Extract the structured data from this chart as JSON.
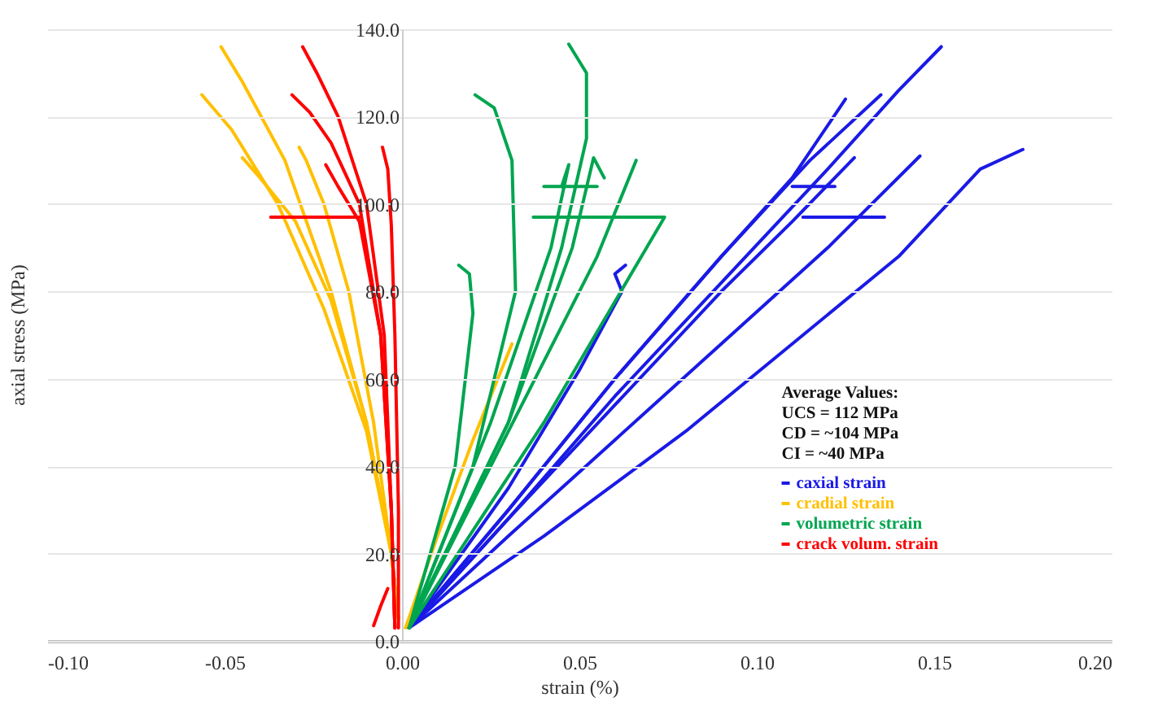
{
  "chart_data": {
    "type": "line",
    "xlabel": "strain (%)",
    "ylabel": "axial stress (MPa)",
    "xlim": [
      -0.1,
      0.2
    ],
    "ylim": [
      0,
      140
    ],
    "xticks": [
      {
        "value": -0.1,
        "label": "-0.10"
      },
      {
        "value": -0.05,
        "label": "-0.05"
      },
      {
        "value": 0,
        "label": "0.00"
      },
      {
        "value": 0.05,
        "label": "0.05"
      },
      {
        "value": 0.1,
        "label": "0.10"
      },
      {
        "value": 0.15,
        "label": "0.15"
      },
      {
        "value": 0.2,
        "label": "0.20"
      }
    ],
    "yticks": [
      {
        "value": 0,
        "label": "0.0"
      },
      {
        "value": 20,
        "label": "20.0"
      },
      {
        "value": 40,
        "label": "40.0"
      },
      {
        "value": 60,
        "label": "60.0"
      },
      {
        "value": 80,
        "label": "80.0"
      },
      {
        "value": 100,
        "label": "100.0"
      },
      {
        "value": 120,
        "label": "120.0"
      },
      {
        "value": 140,
        "label": "140.0"
      }
    ],
    "grid": "y",
    "legend": "bottom right",
    "line_style": "solid",
    "marker": "none",
    "annotations": [
      "Average Values:",
      "UCS = 112 MPa",
      "CD   = ~104 MPa",
      "CI   =  ~40 MPa"
    ],
    "series": [
      {
        "name": "caxial strain",
        "color": "#1a1ae6",
        "x": [
          0.002,
          0.03,
          0.06,
          0.09,
          0.12,
          0.14,
          0.152
        ],
        "values": [
          3,
          28,
          56,
          82,
          108,
          126,
          136
        ]
      },
      {
        "color": "#1a1ae6",
        "x": [
          0.002,
          0.03,
          0.06,
          0.09,
          0.115,
          0.135
        ],
        "values": [
          3,
          30,
          60,
          88,
          110,
          125
        ]
      },
      {
        "color": "#1a1ae6",
        "x": [
          0.002,
          0.03,
          0.06,
          0.09,
          0.11,
          0.125
        ],
        "values": [
          3,
          30,
          60,
          88,
          106,
          124
        ]
      },
      {
        "color": "#1a1ae6",
        "x": [
          0.002,
          0.03,
          0.06,
          0.09,
          0.11,
          0.1275
        ],
        "values": [
          3,
          28,
          54,
          80,
          96,
          110.6
        ]
      },
      {
        "color": "#1a1ae6",
        "x": [
          0.002,
          0.03,
          0.06,
          0.09,
          0.12,
          0.146
        ],
        "values": [
          3,
          24,
          46,
          68,
          90,
          111
        ]
      },
      {
        "color": "#1a1ae6",
        "x": [
          0.002,
          0.04,
          0.08,
          0.11,
          0.14,
          0.163,
          0.175
        ],
        "values": [
          3,
          24,
          48,
          68,
          88,
          108,
          112.5
        ]
      },
      {
        "color": "#1a1ae6",
        "x": [
          0.002,
          0.03,
          0.05,
          0.058,
          0.062,
          0.06,
          0.063
        ],
        "values": [
          3,
          35,
          62,
          74,
          80,
          84,
          86
        ]
      },
      {
        "color": "#1a1ae6",
        "x": [
          0.113,
          0.136
        ],
        "values": [
          97,
          97
        ]
      },
      {
        "color": "#1a1ae6",
        "x": [
          0.11,
          0.122
        ],
        "values": [
          104,
          104
        ]
      },
      {
        "name": "cradial strain",
        "color": "#ffc000",
        "x": [
          -0.001,
          -0.003,
          -0.01,
          -0.02,
          -0.033,
          -0.045,
          -0.051
        ],
        "values": [
          5,
          20,
          50,
          80,
          110,
          128,
          136
        ]
      },
      {
        "color": "#ffc000",
        "x": [
          -0.001,
          -0.003,
          -0.01,
          -0.022,
          -0.035,
          -0.048,
          -0.0564
        ],
        "values": [
          5,
          20,
          48,
          76,
          100,
          117,
          125
        ]
      },
      {
        "color": "#ffc000",
        "x": [
          -0.001,
          -0.003,
          -0.01,
          -0.02,
          -0.03,
          -0.04,
          -0.045
        ],
        "values": [
          5,
          20,
          50,
          78,
          96,
          106,
          110.6
        ]
      },
      {
        "color": "#ffc000",
        "x": [
          -0.001,
          -0.003,
          -0.008,
          -0.015,
          -0.022,
          -0.027,
          -0.029
        ],
        "values": [
          5,
          20,
          50,
          80,
          100,
          110,
          113
        ]
      },
      {
        "color": "#ffc000",
        "x": [
          0.001,
          0.01,
          0.02,
          0.031
        ],
        "values": [
          3,
          24,
          46,
          68
        ]
      },
      {
        "name": "volumetric strain",
        "color": "#00a550",
        "x": [
          0.002,
          0.03,
          0.045,
          0.052,
          0.052,
          0.047
        ],
        "values": [
          3,
          50,
          90,
          115,
          130,
          136.6
        ]
      },
      {
        "color": "#00a550",
        "x": [
          0.002,
          0.02,
          0.032,
          0.031,
          0.026,
          0.0206
        ],
        "values": [
          3,
          40,
          80,
          110,
          122,
          125
        ]
      },
      {
        "color": "#00a550",
        "x": [
          0.002,
          0.015,
          0.02,
          0.019,
          0.016
        ],
        "values": [
          3,
          40,
          75,
          84,
          86
        ]
      },
      {
        "color": "#00a550",
        "x": [
          0.002,
          0.025,
          0.042,
          0.047,
          0.045
        ],
        "values": [
          3,
          50,
          90,
          109,
          104
        ]
      },
      {
        "color": "#00a550",
        "x": [
          0.002,
          0.03,
          0.048,
          0.054,
          0.057
        ],
        "values": [
          3,
          50,
          90,
          110.6,
          106
        ]
      },
      {
        "color": "#00a550",
        "x": [
          0.002,
          0.03,
          0.055,
          0.066
        ],
        "values": [
          3,
          48,
          88,
          110
        ]
      },
      {
        "color": "#00a550",
        "x": [
          0.002,
          0.04,
          0.074,
          0.037
        ],
        "values": [
          3,
          50,
          97,
          97
        ]
      },
      {
        "color": "#00a550",
        "x": [
          0.04,
          0.055
        ],
        "values": [
          104,
          104
        ]
      },
      {
        "name": "crack volum. strain",
        "color": "#ff0000",
        "x": [
          -0.002,
          -0.003,
          -0.005,
          -0.01,
          -0.018,
          -0.024,
          -0.028
        ],
        "values": [
          3,
          30,
          70,
          100,
          120,
          130,
          136
        ]
      },
      {
        "color": "#ff0000",
        "x": [
          -0.002,
          -0.003,
          -0.006,
          -0.012,
          -0.02,
          -0.026,
          -0.031
        ],
        "values": [
          3,
          30,
          70,
          100,
          114,
          121,
          125
        ]
      },
      {
        "color": "#ff0000",
        "x": [
          -0.002,
          -0.003,
          -0.006,
          -0.012,
          -0.018,
          -0.0215
        ],
        "values": [
          3,
          30,
          70,
          96,
          104,
          109
        ]
      },
      {
        "color": "#ff0000",
        "x": [
          -0.001,
          -0.001,
          -0.002,
          -0.003,
          -0.004,
          -0.0055
        ],
        "values": [
          3,
          30,
          70,
          95,
          108,
          113
        ]
      },
      {
        "color": "#ff0000",
        "x": [
          -0.008,
          -0.006,
          -0.004
        ],
        "values": [
          3.5,
          8,
          12
        ]
      },
      {
        "color": "#ff0000",
        "x": [
          -0.037,
          -0.012
        ],
        "values": [
          97,
          97
        ]
      }
    ]
  }
}
